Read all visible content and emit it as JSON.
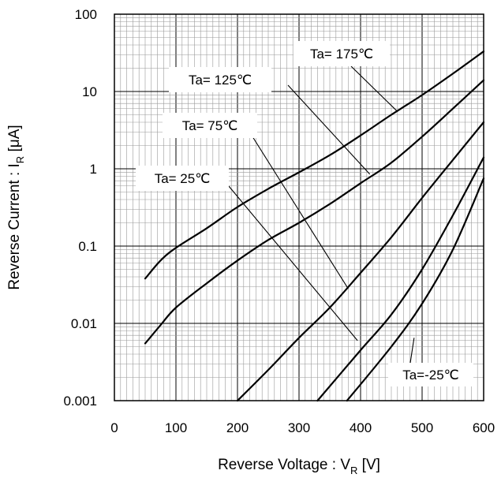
{
  "chart_data": {
    "type": "line",
    "xlabel": {
      "main": "Reverse Voltage : V",
      "sub": "R",
      "unit": " [V]"
    },
    "ylabel": {
      "main": "Reverse Current : I",
      "sub": "R",
      "unit": " [μA]"
    },
    "xlim": [
      0,
      600
    ],
    "ylim": [
      0.001,
      100
    ],
    "yscale": "log",
    "grid": true,
    "x_ticks": [
      "0",
      "100",
      "200",
      "300",
      "400",
      "500",
      "600"
    ],
    "y_ticks": [
      "0.001",
      "0.01",
      "0.1",
      "1",
      "10",
      "100"
    ],
    "series": [
      {
        "name": "Ta= 175℃",
        "x": [
          50,
          75,
          100,
          150,
          200,
          250,
          300,
          350,
          400,
          450,
          500,
          550,
          600
        ],
        "y": [
          0.038,
          0.065,
          0.095,
          0.17,
          0.32,
          0.55,
          0.9,
          1.5,
          2.7,
          5.0,
          9.0,
          17,
          33
        ]
      },
      {
        "name": "Ta= 125℃",
        "x": [
          50,
          75,
          100,
          150,
          200,
          250,
          300,
          350,
          400,
          450,
          500,
          550,
          600
        ],
        "y": [
          0.0055,
          0.0095,
          0.016,
          0.033,
          0.065,
          0.12,
          0.2,
          0.35,
          0.65,
          1.2,
          2.6,
          6.0,
          14
        ]
      },
      {
        "name": "Ta= 75℃",
        "x": [
          200,
          250,
          300,
          350,
          400,
          450,
          500,
          550,
          600
        ],
        "y": [
          0.001,
          0.0025,
          0.0065,
          0.016,
          0.045,
          0.13,
          0.42,
          1.3,
          4.0
        ]
      },
      {
        "name": "Ta= 25℃",
        "x": [
          330,
          400,
          450,
          500,
          550,
          600
        ],
        "y": [
          0.001,
          0.0045,
          0.013,
          0.05,
          0.25,
          1.4
        ]
      },
      {
        "name": "Ta=-25℃",
        "x": [
          378,
          450,
          500,
          550,
          600
        ],
        "y": [
          0.001,
          0.005,
          0.018,
          0.09,
          0.75
        ]
      }
    ],
    "annotations": [
      {
        "label": "Ta= 175℃",
        "target_x": 460,
        "target_y": 5.5
      },
      {
        "label": "Ta= 125℃",
        "target_x": 415,
        "target_y": 0.85
      },
      {
        "label": "Ta= 75℃",
        "target_x": 380,
        "target_y": 0.028
      },
      {
        "label": "Ta= 25℃",
        "target_x": 395,
        "target_y": 0.006
      },
      {
        "label": "Ta=-25℃",
        "target_x": 487,
        "target_y": 0.0065
      }
    ]
  }
}
